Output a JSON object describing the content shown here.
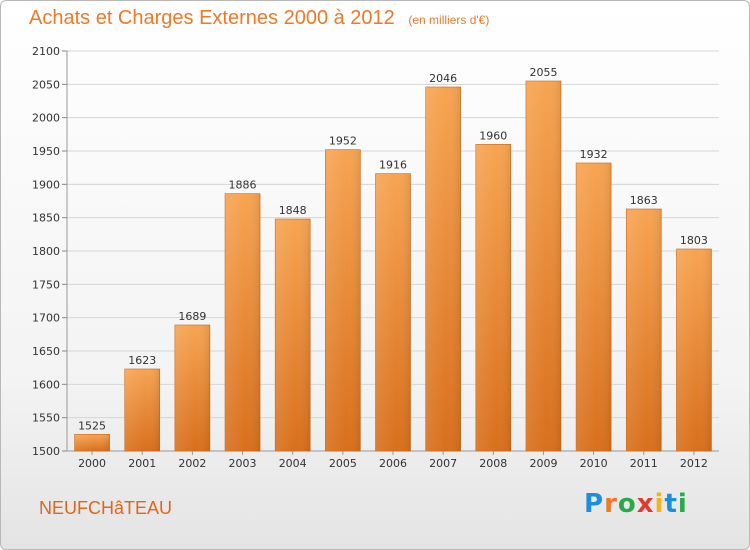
{
  "header": {
    "title": "Achats et Charges Externes 2000 à 2012",
    "subtitle": "(en milliers d'€)"
  },
  "footer": {
    "commune": "NEUFCHâTEAU",
    "logo_text": "Proxiti",
    "logo_letters": [
      "P",
      "r",
      "o",
      "x",
      "i",
      "t",
      "i"
    ],
    "logo_colors": [
      "#1d8fd6",
      "#f07828",
      "#2aa84a",
      "#e33a2e",
      "#f6b21a",
      "#1d8fd6",
      "#2aa84a"
    ]
  },
  "chart_data": {
    "type": "bar",
    "title": "Achats et Charges Externes 2000 à 2012",
    "subtitle": "(en milliers d'€)",
    "categories": [
      "2000",
      "2001",
      "2002",
      "2003",
      "2004",
      "2005",
      "2006",
      "2007",
      "2008",
      "2009",
      "2010",
      "2011",
      "2012"
    ],
    "values": [
      1525,
      1623,
      1689,
      1886,
      1848,
      1952,
      1916,
      2046,
      1960,
      2055,
      1932,
      1863,
      1803
    ],
    "ylim": [
      1500,
      2100
    ],
    "yticks": [
      1500,
      1550,
      1600,
      1650,
      1700,
      1750,
      1800,
      1850,
      1900,
      1950,
      2000,
      2050,
      2100
    ],
    "grid": true,
    "bar_color": "#f0882c",
    "xlabel": "",
    "ylabel": ""
  }
}
